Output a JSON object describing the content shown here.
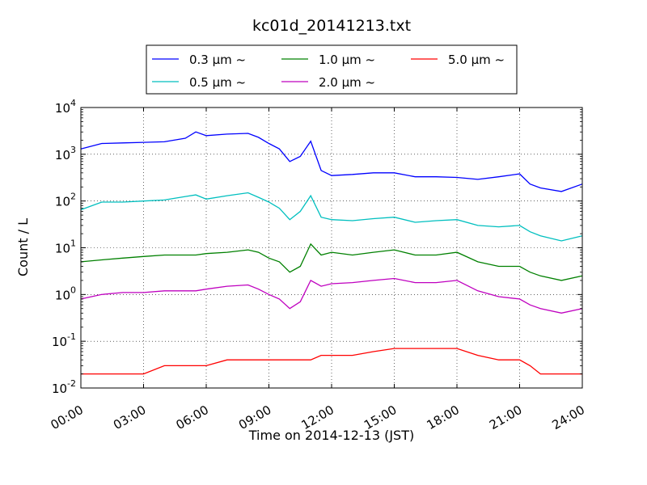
{
  "chart_data": {
    "type": "line",
    "title": "kc01d_20141213.txt",
    "xlabel": "Time on 2014-12-13 (JST)",
    "ylabel": "Count / L",
    "y_scale": "log",
    "ylim": [
      0.01,
      10000
    ],
    "xlim": [
      "00:00",
      "24:00"
    ],
    "x_ticks": [
      "00:00",
      "03:00",
      "06:00",
      "09:00",
      "12:00",
      "15:00",
      "18:00",
      "21:00",
      "24:00"
    ],
    "y_ticks": [
      {
        "base": "10",
        "exp": "-2",
        "value": 0.01
      },
      {
        "base": "10",
        "exp": "-1",
        "value": 0.1
      },
      {
        "base": "10",
        "exp": "0",
        "value": 1
      },
      {
        "base": "10",
        "exp": "1",
        "value": 10
      },
      {
        "base": "10",
        "exp": "2",
        "value": 100
      },
      {
        "base": "10",
        "exp": "3",
        "value": 1000
      },
      {
        "base": "10",
        "exp": "4",
        "value": 10000
      }
    ],
    "grid": true,
    "legend_position": "top",
    "x": [
      "00:00",
      "01:00",
      "02:00",
      "03:00",
      "04:00",
      "05:00",
      "05:30",
      "06:00",
      "07:00",
      "08:00",
      "08:30",
      "09:00",
      "09:30",
      "10:00",
      "10:30",
      "11:00",
      "11:30",
      "12:00",
      "13:00",
      "14:00",
      "15:00",
      "16:00",
      "17:00",
      "18:00",
      "19:00",
      "20:00",
      "21:00",
      "21:30",
      "22:00",
      "23:00",
      "24:00"
    ],
    "series": [
      {
        "name": "0.3 μm ~",
        "color": "#0000ff",
        "values": [
          1300,
          1700,
          1750,
          1800,
          1850,
          2200,
          3000,
          2500,
          2700,
          2800,
          2300,
          1700,
          1300,
          700,
          900,
          1900,
          450,
          350,
          370,
          400,
          400,
          330,
          330,
          320,
          290,
          330,
          380,
          230,
          190,
          160,
          230
        ]
      },
      {
        "name": "0.5 μm ~",
        "color": "#00bfbf",
        "values": [
          65,
          95,
          95,
          100,
          105,
          125,
          135,
          110,
          130,
          150,
          120,
          95,
          70,
          40,
          60,
          130,
          45,
          40,
          38,
          42,
          45,
          35,
          38,
          40,
          30,
          28,
          30,
          22,
          18,
          14,
          18
        ]
      },
      {
        "name": "1.0 μm ~",
        "color": "#008000",
        "values": [
          5,
          5.5,
          6,
          6.5,
          7,
          7,
          7,
          7.5,
          8,
          9,
          8,
          6,
          5,
          3,
          4,
          12,
          7,
          8,
          7,
          8,
          9,
          7,
          7,
          8,
          5,
          4,
          4,
          3,
          2.5,
          2,
          2.5
        ]
      },
      {
        "name": "2.0 μm ~",
        "color": "#bf00bf",
        "values": [
          0.8,
          1.0,
          1.1,
          1.1,
          1.2,
          1.2,
          1.2,
          1.3,
          1.5,
          1.6,
          1.3,
          1.0,
          0.8,
          0.5,
          0.7,
          2.0,
          1.5,
          1.7,
          1.8,
          2.0,
          2.2,
          1.8,
          1.8,
          2.0,
          1.2,
          0.9,
          0.8,
          0.6,
          0.5,
          0.4,
          0.5
        ]
      },
      {
        "name": "5.0 μm ~",
        "color": "#ff0000",
        "values": [
          0.02,
          0.02,
          0.02,
          0.02,
          0.03,
          0.03,
          0.03,
          0.03,
          0.04,
          0.04,
          0.04,
          0.04,
          0.04,
          0.04,
          0.04,
          0.04,
          0.05,
          0.05,
          0.05,
          0.06,
          0.07,
          0.07,
          0.07,
          0.07,
          0.05,
          0.04,
          0.04,
          0.03,
          0.02,
          0.02,
          0.02
        ]
      }
    ]
  }
}
